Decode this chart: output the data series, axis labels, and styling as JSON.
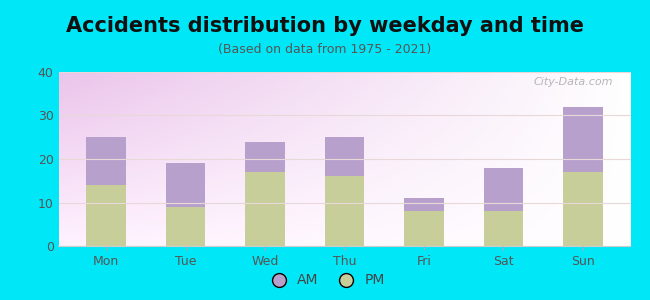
{
  "title": "Accidents distribution by weekday and time",
  "subtitle": "(Based on data from 1975 - 2021)",
  "categories": [
    "Mon",
    "Tue",
    "Wed",
    "Thu",
    "Fri",
    "Sat",
    "Sun"
  ],
  "pm_values": [
    14,
    9,
    17,
    16,
    8,
    8,
    17
  ],
  "am_values": [
    11,
    10,
    7,
    9,
    3,
    10,
    15
  ],
  "am_color": "#b8a0cc",
  "pm_color": "#c8ce9a",
  "background_color": "#00e8f8",
  "ylim": [
    0,
    40
  ],
  "yticks": [
    0,
    10,
    20,
    30,
    40
  ],
  "bar_width": 0.5,
  "title_fontsize": 15,
  "subtitle_fontsize": 9,
  "tick_fontsize": 9,
  "legend_fontsize": 10,
  "watermark_text": "City-Data.com",
  "watermark_color": "#aaaaaa"
}
